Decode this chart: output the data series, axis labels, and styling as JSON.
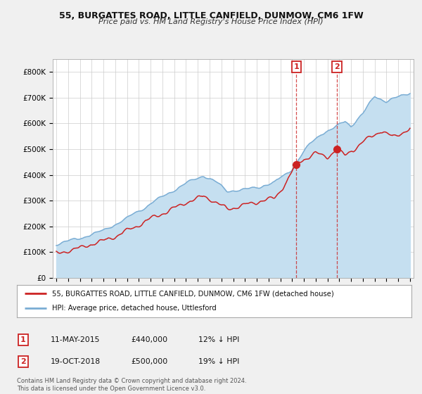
{
  "title": "55, BURGATTES ROAD, LITTLE CANFIELD, DUNMOW, CM6 1FW",
  "subtitle": "Price paid vs. HM Land Registry's House Price Index (HPI)",
  "ylim": [
    0,
    850000
  ],
  "yticks": [
    0,
    100000,
    200000,
    300000,
    400000,
    500000,
    600000,
    700000,
    800000
  ],
  "ytick_labels": [
    "£0",
    "£100K",
    "£200K",
    "£300K",
    "£400K",
    "£500K",
    "£600K",
    "£700K",
    "£800K"
  ],
  "hpi_color": "#7aadd4",
  "hpi_fill_color": "#c5dff0",
  "price_color": "#cc2222",
  "vline_color": "#cc2222",
  "marker_box_color": "#cc2222",
  "legend_line1": "55, BURGATTES ROAD, LITTLE CANFIELD, DUNMOW, CM6 1FW (detached house)",
  "legend_line2": "HPI: Average price, detached house, Uttlesford",
  "table_row1": [
    "1",
    "11-MAY-2015",
    "£440,000",
    "12% ↓ HPI"
  ],
  "table_row2": [
    "2",
    "19-OCT-2018",
    "£500,000",
    "19% ↓ HPI"
  ],
  "footnote": "Contains HM Land Registry data © Crown copyright and database right 2024.\nThis data is licensed under the Open Government Licence v3.0.",
  "bg_color": "#f0f0f0",
  "plot_bg_color": "#ffffff",
  "grid_color": "#cccccc",
  "sale1_x": 2015.36,
  "sale1_y": 440000,
  "sale2_x": 2018.8,
  "sale2_y": 500000,
  "xlim_left": 1994.7,
  "xlim_right": 2025.3
}
